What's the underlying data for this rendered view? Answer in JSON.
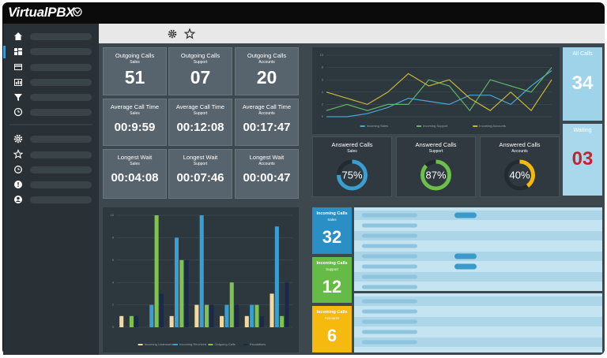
{
  "header": {
    "logo": "VirtualPBX"
  },
  "tiles": [
    [
      {
        "title": "Outgoing Calls",
        "subtitle": "Sales",
        "value": "51"
      },
      {
        "title": "Outgoing Calls",
        "subtitle": "Support",
        "value": "07"
      },
      {
        "title": "Outgoing Calls",
        "subtitle": "Accounts",
        "value": "20"
      }
    ],
    [
      {
        "title": "Average Call Time",
        "subtitle": "Sales",
        "value": "00:9:59"
      },
      {
        "title": "Average Call Time",
        "subtitle": "Support",
        "value": "00:12:08"
      },
      {
        "title": "Average Call Time",
        "subtitle": "Accounts",
        "value": "00:17:47"
      }
    ],
    [
      {
        "title": "Longest Wait",
        "subtitle": "Sales",
        "value": "00:04:08"
      },
      {
        "title": "Longest Wait",
        "subtitle": "Support",
        "value": "00:07:46"
      },
      {
        "title": "Longest Wait",
        "subtitle": "Accounts",
        "value": "00:00:47"
      }
    ]
  ],
  "answered_calls": [
    {
      "title": "Answered Calls",
      "subtitle": "Sales",
      "value": 75,
      "value_label": "75%",
      "color": "#3a9fd0"
    },
    {
      "title": "Answered Calls",
      "subtitle": "Support",
      "value": 87,
      "value_label": "87%",
      "color": "#6cbf4b"
    },
    {
      "title": "Answered Calls",
      "subtitle": "Accounts",
      "value": 40,
      "value_label": "40%",
      "color": "#f5b80f"
    }
  ],
  "all_calls": {
    "title": "All Calls",
    "value": "34"
  },
  "waiting": {
    "title": "Waiting",
    "value": "03"
  },
  "incoming_calls": [
    {
      "title": "Incoming Calls",
      "subtitle": "Sales",
      "value": "32",
      "color": "#2a8fc4"
    },
    {
      "title": "Incoming Calls",
      "subtitle": "Support",
      "value": "12",
      "color": "#66bb46"
    },
    {
      "title": "Incoming Calls",
      "subtitle": "Accounts",
      "value": "6",
      "color": "#f6b90d"
    }
  ],
  "line_chart": {
    "type": "line",
    "categories": [
      null,
      null,
      null,
      null,
      null,
      null,
      null,
      null,
      null,
      null,
      null,
      null
    ],
    "series": [
      {
        "name": "Incoming Sales",
        "color": "#4aa6d6",
        "values": [
          0,
          0,
          0.5,
          1.5,
          3,
          2.5,
          2,
          3.5,
          3.5,
          2,
          5,
          7.5
        ]
      },
      {
        "name": "Incoming Support",
        "color": "#5fb567",
        "values": [
          1,
          2,
          1,
          2,
          2,
          6,
          5,
          1,
          6,
          5,
          4,
          8
        ]
      },
      {
        "name": "Incoming Accounts",
        "color": "#c9b53a",
        "values": [
          4,
          3,
          2,
          4,
          7,
          5,
          6,
          3,
          1,
          4,
          1,
          6
        ]
      }
    ],
    "ylim": [
      0,
      10
    ],
    "yticks": [
      0,
      2,
      4,
      6,
      8,
      10
    ],
    "grid": true
  },
  "bar_chart": {
    "type": "bar",
    "categories": [
      null,
      null,
      null,
      null,
      null,
      null,
      null
    ],
    "series": [
      {
        "name": "Incoming Unanswered",
        "color": "#f3d9a0",
        "values": [
          1,
          0,
          1,
          2,
          1,
          1,
          3
        ]
      },
      {
        "name": "Incoming Received",
        "color": "#3a9fd0",
        "values": [
          0,
          2,
          8,
          10,
          2,
          2,
          9
        ]
      },
      {
        "name": "Outgoing Calls",
        "color": "#7fc24f",
        "values": [
          1,
          10,
          6,
          2,
          4,
          2,
          1
        ]
      },
      {
        "name": "Escalations",
        "color": "#1c2a4a",
        "values": [
          1,
          3,
          6,
          2,
          2,
          1,
          4
        ]
      }
    ],
    "ylim": [
      0,
      10
    ],
    "yticks": [
      0,
      2,
      4,
      6,
      8,
      10
    ],
    "grid": true
  }
}
